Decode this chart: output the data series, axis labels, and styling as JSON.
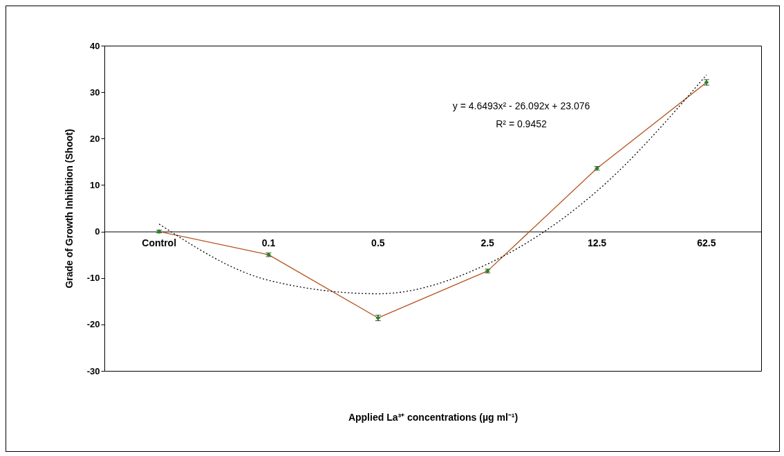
{
  "chart_data": {
    "type": "line",
    "categories": [
      "Control",
      "0.1",
      "0.5",
      "2.5",
      "12.5",
      "62.5"
    ],
    "series": [
      {
        "color": "#b5531e",
        "values": [
          0,
          -5.0,
          -18.6,
          -8.5,
          13.6,
          32.1
        ],
        "errors": [
          0.3,
          0.4,
          0.6,
          0.4,
          0.4,
          0.6
        ],
        "marker": "diamond",
        "colors": [
          "#1f8a1f",
          "#1f8a1f",
          "#1f8a1f",
          "#1f8a1f",
          "#1f8a1f",
          "#1f8a1f"
        ],
        "line_style": "solid"
      },
      {
        "color": "#000000",
        "values": [
          1.6,
          -10.5,
          -13.4,
          -7.0,
          8.7,
          33.7
        ],
        "marker": "none",
        "line_style": "dotted"
      }
    ],
    "xlabel": "Applied La³⁺ concentrations (µg ml⁻¹)",
    "ylabel": "Grade of Growth Inhibition (Shoot)",
    "annotations": [
      "y = 4.6493x² - 26.092x + 23.076",
      "R² = 0.9452"
    ],
    "ylim": [
      -30,
      40
    ],
    "yticks": [
      -30,
      -20,
      -10,
      0,
      10,
      20,
      30,
      40
    ]
  }
}
